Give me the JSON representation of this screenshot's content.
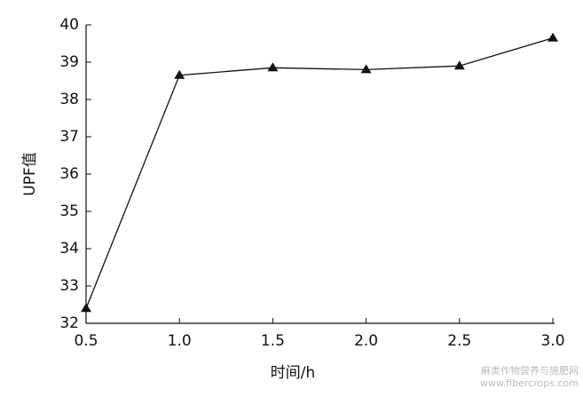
{
  "chart_data": {
    "type": "line",
    "x_label": "时间/h",
    "y_label": "UPF值",
    "x": [
      0.5,
      1.0,
      1.5,
      2.0,
      2.5,
      3.0
    ],
    "series": [
      {
        "name": "UPF值",
        "color": "#111111",
        "values": [
          32.4,
          38.65,
          38.85,
          38.8,
          38.9,
          39.65
        ]
      }
    ],
    "xlim": [
      0.5,
      3.0
    ],
    "xticks": [
      0.5,
      {
        "value": 1,
        "label": "1.0"
      },
      1.5,
      {
        "value": 2,
        "label": "2.0"
      },
      2.5,
      {
        "value": 3,
        "label": "3.0"
      }
    ],
    "ylim": [
      32,
      40
    ],
    "yticks": [
      32,
      33,
      34,
      35,
      36,
      37,
      38,
      39,
      40
    ],
    "marker": "triangle"
  },
  "watermark": {
    "line1": "麻类作物营养与施肥网",
    "line2": "www.fibercrops.com"
  }
}
